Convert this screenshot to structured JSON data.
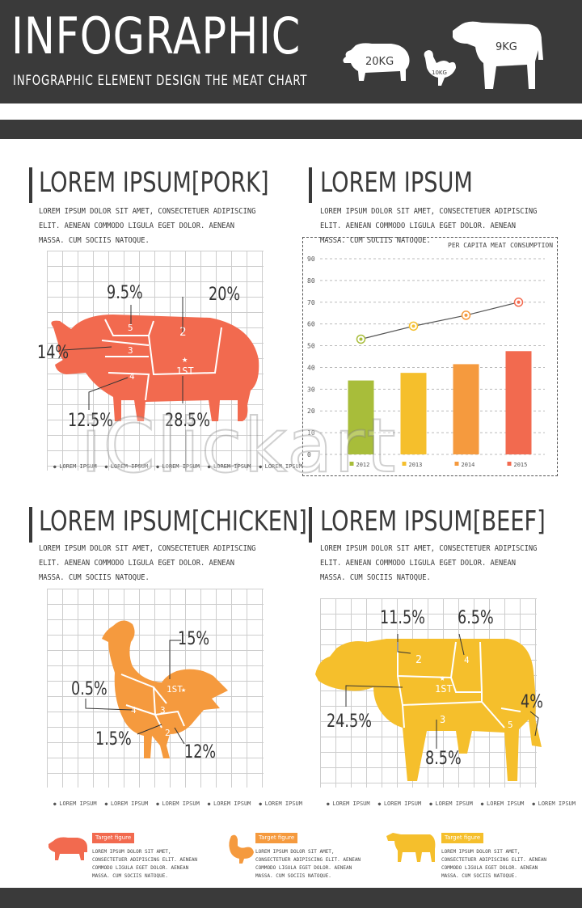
{
  "header": {
    "title": "INFOGRAPHIC",
    "subtitle": "INFOGRAPHIC ELEMENT DESIGN THE MEAT CHART",
    "pig_label": "20KG",
    "chicken_label": "10KG",
    "cow_label": "9KG"
  },
  "pork": {
    "title": "LOREM IPSUM[PORK]",
    "body": "LOREM IPSUM DOLOR SIT AMET, CONSECTETUER ADIPISCING ELIT. AENEAN COMMODO LIGULA EGET DOLOR. AENEAN MASSA. CUM SOCIIS NATOQUE.",
    "pct1": "9.5%",
    "pct2": "20%",
    "pct3": "14%",
    "pct4": "12.5%",
    "pct5": "28.5%",
    "cut_5": "5",
    "cut_2": "2",
    "cut_3": "3",
    "cut_4": "4",
    "cut_1st": "1ST",
    "legend": [
      "LOREM IPSUM",
      "LOREM IPSUM",
      "LOREM IPSUM",
      "LOREM IPSUM",
      "LOREM IPSUM"
    ]
  },
  "consumption": {
    "title": "LOREM IPSUM",
    "body": "LOREM IPSUM DOLOR SIT AMET, CONSECTETUER ADIPISCING ELIT. AENEAN COMMODO LIGULA EGET DOLOR. AENEAN MASSA. CUM SOCIIS NATOQUE.",
    "note": "PER CAPITA MEAT CONSUMPTION"
  },
  "chart_data": {
    "type": "bar",
    "title": "PER CAPITA MEAT CONSUMPTION",
    "categories": [
      "2012",
      "2013",
      "2014",
      "2015"
    ],
    "values": [
      34,
      37.5,
      41.5,
      47.5
    ],
    "line_values": [
      53,
      59,
      64,
      70
    ],
    "bar_colors": [
      "#a8bd3a",
      "#f5bf2c",
      "#f59a3e",
      "#f26a4f"
    ],
    "line_color": "#555555",
    "ylim": [
      0,
      90
    ],
    "yticks": [
      "0",
      "10",
      "20",
      "30",
      "40",
      "50",
      "60",
      "70",
      "80",
      "90"
    ],
    "grid": true
  },
  "chicken": {
    "title": "LOREM IPSUM[CHICKEN]",
    "body": "LOREM IPSUM DOLOR SIT AMET, CONSECTETUER ADIPISCING ELIT. AENEAN COMMODO LIGULA EGET DOLOR. AENEAN MASSA. CUM SOCIIS NATOQUE.",
    "pct1": "15%",
    "pct2": "0.5%",
    "pct3": "1.5%",
    "pct4": "12%",
    "cut_1st": "1ST",
    "cut_4": "4",
    "cut_3": "3",
    "cut_2": "2",
    "legend": [
      "LOREM IPSUM",
      "LOREM IPSUM",
      "LOREM IPSUM",
      "LOREM IPSUM",
      "LOREM IPSUM"
    ]
  },
  "beef": {
    "title": "LOREM IPSUM[BEEF]",
    "body": "LOREM IPSUM DOLOR SIT AMET, CONSECTETUER ADIPISCING ELIT. AENEAN COMMODO LIGULA EGET DOLOR. AENEAN MASSA. CUM SOCIIS NATOQUE.",
    "pct1": "11.5%",
    "pct2": "6.5%",
    "pct3": "4%",
    "pct4": "24.5%",
    "pct5": "8.5%",
    "cut_2": "2",
    "cut_4": "4",
    "cut_1st": "1ST",
    "cut_3": "3",
    "cut_5": "5",
    "legend": [
      "LOREM IPSUM",
      "LOREM IPSUM",
      "LOREM IPSUM",
      "LOREM IPSUM",
      "LOREM IPSUM"
    ]
  },
  "targets": [
    {
      "tag": "Target figure",
      "text": "LOREM IPSUM DOLOR SIT AMET, CONSECTETUER ADIPISCING ELIT. AENEAN COMMODO LIGULA EGET DOLOR. AENEAN MASSA. CUM SOCIIS NATOQUE."
    },
    {
      "tag": "Target figure",
      "text": "LOREM IPSUM DOLOR SIT AMET, CONSECTETUER ADIPISCING ELIT. AENEAN COMMODO LIGULA EGET DOLOR. AENEAN MASSA. CUM SOCIIS NATOQUE."
    },
    {
      "tag": "Target figure",
      "text": "LOREM IPSUM DOLOR SIT AMET, CONSECTETUER ADIPISCING ELIT. AENEAN COMMODO LIGULA EGET DOLOR. AENEAN MASSA. CUM SOCIIS NATOQUE."
    }
  ],
  "colors": {
    "dark": "#3a3a3a",
    "pork": "#f26a4f",
    "chicken": "#f59a3e",
    "beef": "#f5bf2c",
    "tag_pork": "#f26a4f",
    "tag_chicken": "#f59a3e",
    "tag_beef": "#f5bf2c"
  },
  "watermark": "iClickart"
}
